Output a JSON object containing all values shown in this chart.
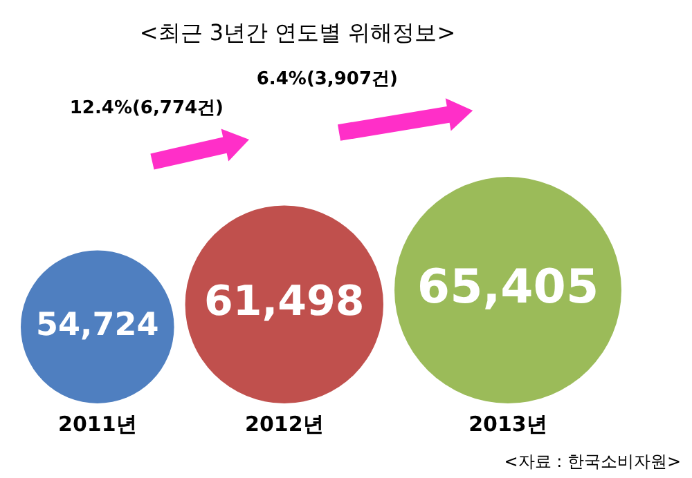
{
  "chart_data": {
    "type": "other",
    "title": "<최근 3년간 연도별 위해정보>",
    "categories": [
      "2011년",
      "2012년",
      "2013년"
    ],
    "values": [
      54724,
      61498,
      65405
    ],
    "colors": [
      "#4f7fc0",
      "#c0504d",
      "#9bbb59"
    ],
    "value_labels": [
      "54,724",
      "61,498",
      "65,405"
    ],
    "annotations": [
      "12.4%(6,774건)",
      "6.4%(3,907건)",
      "<자료 :  한국소비자원>"
    ]
  }
}
